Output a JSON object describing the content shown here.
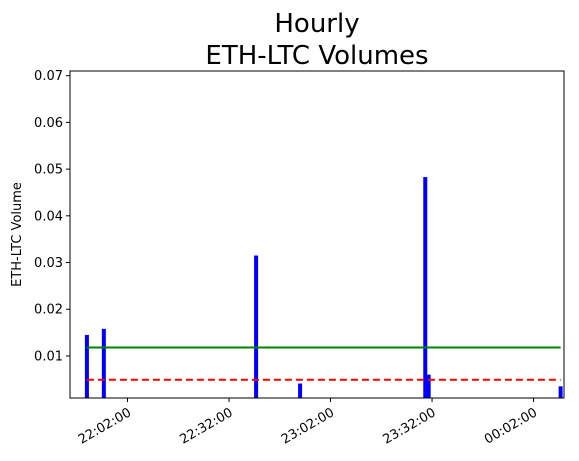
{
  "chart_data": {
    "type": "bar",
    "title_lines": [
      "Hourly",
      "ETH-LTC Volumes"
    ],
    "ylabel": "ETH-LTC Volume",
    "xlabel": "",
    "ylim": [
      0.001,
      0.071
    ],
    "yticks": [
      0.01,
      0.02,
      0.03,
      0.04,
      0.05,
      0.06,
      0.07
    ],
    "ytick_labels": [
      "0.01",
      "0.02",
      "0.03",
      "0.04",
      "0.05",
      "0.06",
      "0.07"
    ],
    "xlim": [
      "21:45:00",
      "00:11:00"
    ],
    "xticks": [
      "22:02:00",
      "22:32:00",
      "23:02:00",
      "23:32:00",
      "00:02:00"
    ],
    "series": [
      {
        "color": "#0000ff",
        "points": [
          {
            "time": "21:50:00",
            "volume": 0.0145
          },
          {
            "time": "21:55:00",
            "volume": 0.0158
          },
          {
            "time": "22:40:00",
            "volume": 0.0315
          },
          {
            "time": "22:53:00",
            "volume": 0.0041
          },
          {
            "time": "23:30:00",
            "volume": 0.0483
          },
          {
            "time": "23:31:00",
            "volume": 0.006
          },
          {
            "time": "00:10:00",
            "volume": 0.0035
          }
        ]
      }
    ],
    "reference_lines": [
      {
        "value": 0.0118,
        "color": "#008000",
        "style": "solid"
      },
      {
        "value": 0.0049,
        "color": "#ff0000",
        "style": "dashed"
      }
    ],
    "grid": false,
    "legend": "none"
  }
}
